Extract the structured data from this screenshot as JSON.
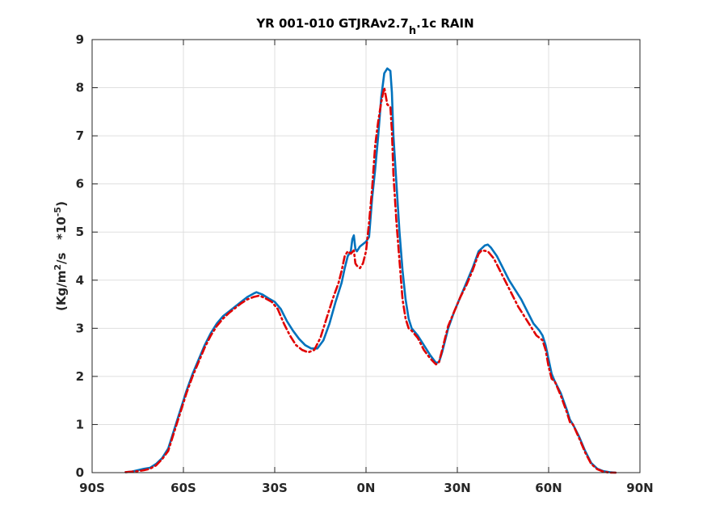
{
  "chart_data": {
    "type": "line",
    "title": {
      "main": "YR 001-010 GTJRAv2.7",
      "subscript": "h",
      "suffix": ".1c RAIN"
    },
    "ylabel": {
      "prefix": "(Kg/m",
      "sup1": "2",
      "middle": "/s   *10",
      "sup2": "-5",
      "suffix": ")"
    },
    "xlabel": "",
    "xlim": [
      -90,
      90
    ],
    "ylim": [
      0,
      9
    ],
    "x_ticks": [
      -90,
      -60,
      -30,
      0,
      30,
      60,
      90
    ],
    "x_tick_labels": [
      "90S",
      "60S",
      "30S",
      "0N",
      "30N",
      "60N",
      "90N"
    ],
    "y_ticks": [
      0,
      1,
      2,
      3,
      4,
      5,
      6,
      7,
      8,
      9
    ],
    "y_tick_labels": [
      "0",
      "1",
      "2",
      "3",
      "4",
      "5",
      "6",
      "7",
      "8",
      "9"
    ],
    "grid": true,
    "series": [
      {
        "color": "#0072BD",
        "style": "solid",
        "points": [
          [
            -79,
            0.01
          ],
          [
            -77,
            0.02
          ],
          [
            -75,
            0.05
          ],
          [
            -73,
            0.08
          ],
          [
            -71,
            0.1
          ],
          [
            -69,
            0.18
          ],
          [
            -67,
            0.3
          ],
          [
            -65,
            0.5
          ],
          [
            -63,
            0.9
          ],
          [
            -61,
            1.3
          ],
          [
            -59,
            1.7
          ],
          [
            -57,
            2.05
          ],
          [
            -55,
            2.35
          ],
          [
            -53,
            2.65
          ],
          [
            -51,
            2.9
          ],
          [
            -49,
            3.1
          ],
          [
            -47,
            3.25
          ],
          [
            -45,
            3.35
          ],
          [
            -43,
            3.45
          ],
          [
            -41,
            3.55
          ],
          [
            -39,
            3.65
          ],
          [
            -37,
            3.72
          ],
          [
            -36,
            3.75
          ],
          [
            -34,
            3.7
          ],
          [
            -32,
            3.62
          ],
          [
            -30,
            3.55
          ],
          [
            -28,
            3.4
          ],
          [
            -26,
            3.15
          ],
          [
            -24,
            2.95
          ],
          [
            -22,
            2.78
          ],
          [
            -20,
            2.65
          ],
          [
            -18,
            2.58
          ],
          [
            -16,
            2.58
          ],
          [
            -14,
            2.75
          ],
          [
            -12,
            3.1
          ],
          [
            -10,
            3.55
          ],
          [
            -8,
            3.95
          ],
          [
            -7,
            4.25
          ],
          [
            -6,
            4.5
          ],
          [
            -5,
            4.6
          ],
          [
            -4.5,
            4.85
          ],
          [
            -4,
            4.93
          ],
          [
            -3.5,
            4.65
          ],
          [
            -3,
            4.6
          ],
          [
            -2,
            4.7
          ],
          [
            -1,
            4.75
          ],
          [
            0,
            4.8
          ],
          [
            1,
            4.9
          ],
          [
            2,
            5.7
          ],
          [
            3,
            6.3
          ],
          [
            4,
            7.0
          ],
          [
            5,
            7.8
          ],
          [
            6,
            8.3
          ],
          [
            7,
            8.4
          ],
          [
            8,
            8.35
          ],
          [
            8.5,
            7.9
          ],
          [
            9,
            7.0
          ],
          [
            10,
            6.0
          ],
          [
            11,
            5.0
          ],
          [
            12,
            4.2
          ],
          [
            13,
            3.6
          ],
          [
            14,
            3.2
          ],
          [
            15,
            3.0
          ],
          [
            17,
            2.85
          ],
          [
            19,
            2.65
          ],
          [
            21,
            2.45
          ],
          [
            23,
            2.28
          ],
          [
            24,
            2.3
          ],
          [
            25,
            2.5
          ],
          [
            26,
            2.75
          ],
          [
            27,
            3.0
          ],
          [
            29,
            3.35
          ],
          [
            31,
            3.65
          ],
          [
            33,
            3.95
          ],
          [
            35,
            4.25
          ],
          [
            37,
            4.6
          ],
          [
            39,
            4.72
          ],
          [
            40,
            4.74
          ],
          [
            41,
            4.68
          ],
          [
            43,
            4.5
          ],
          [
            45,
            4.25
          ],
          [
            47,
            4.0
          ],
          [
            49,
            3.8
          ],
          [
            51,
            3.6
          ],
          [
            53,
            3.35
          ],
          [
            55,
            3.1
          ],
          [
            57,
            2.95
          ],
          [
            58,
            2.85
          ],
          [
            59,
            2.65
          ],
          [
            60,
            2.35
          ],
          [
            61,
            2.05
          ],
          [
            62,
            1.9
          ],
          [
            64,
            1.65
          ],
          [
            66,
            1.3
          ],
          [
            67,
            1.1
          ],
          [
            68,
            1.0
          ],
          [
            70,
            0.75
          ],
          [
            72,
            0.45
          ],
          [
            74,
            0.2
          ],
          [
            76,
            0.08
          ],
          [
            78,
            0.03
          ],
          [
            80,
            0.01
          ],
          [
            82,
            0.0
          ]
        ]
      },
      {
        "color": "#E00000",
        "style": "dashdot",
        "points": [
          [
            -79,
            0.01
          ],
          [
            -77,
            0.02
          ],
          [
            -75,
            0.03
          ],
          [
            -73,
            0.05
          ],
          [
            -71,
            0.08
          ],
          [
            -69,
            0.15
          ],
          [
            -67,
            0.28
          ],
          [
            -65,
            0.45
          ],
          [
            -63,
            0.85
          ],
          [
            -61,
            1.25
          ],
          [
            -59,
            1.65
          ],
          [
            -57,
            2.0
          ],
          [
            -55,
            2.3
          ],
          [
            -53,
            2.6
          ],
          [
            -51,
            2.85
          ],
          [
            -49,
            3.05
          ],
          [
            -47,
            3.2
          ],
          [
            -45,
            3.32
          ],
          [
            -43,
            3.42
          ],
          [
            -41,
            3.52
          ],
          [
            -39,
            3.6
          ],
          [
            -37,
            3.65
          ],
          [
            -35,
            3.68
          ],
          [
            -33,
            3.62
          ],
          [
            -31,
            3.55
          ],
          [
            -29,
            3.4
          ],
          [
            -27,
            3.1
          ],
          [
            -25,
            2.85
          ],
          [
            -23,
            2.65
          ],
          [
            -21,
            2.55
          ],
          [
            -19,
            2.5
          ],
          [
            -17,
            2.55
          ],
          [
            -15,
            2.8
          ],
          [
            -13,
            3.2
          ],
          [
            -11,
            3.6
          ],
          [
            -9,
            3.95
          ],
          [
            -8,
            4.2
          ],
          [
            -7,
            4.5
          ],
          [
            -6,
            4.6
          ],
          [
            -5,
            4.55
          ],
          [
            -4,
            4.62
          ],
          [
            -3.5,
            4.35
          ],
          [
            -3,
            4.3
          ],
          [
            -2,
            4.25
          ],
          [
            -1,
            4.35
          ],
          [
            0,
            4.6
          ],
          [
            1,
            5.2
          ],
          [
            2,
            5.9
          ],
          [
            3,
            6.8
          ],
          [
            4,
            7.3
          ],
          [
            5,
            7.7
          ],
          [
            6,
            8.0
          ],
          [
            7,
            7.65
          ],
          [
            8,
            7.6
          ],
          [
            8.5,
            7.1
          ],
          [
            9,
            6.2
          ],
          [
            10,
            5.2
          ],
          [
            11,
            4.4
          ],
          [
            12,
            3.6
          ],
          [
            13,
            3.2
          ],
          [
            14,
            3.0
          ],
          [
            15,
            2.95
          ],
          [
            17,
            2.8
          ],
          [
            19,
            2.55
          ],
          [
            21,
            2.38
          ],
          [
            23,
            2.25
          ],
          [
            24,
            2.3
          ],
          [
            25,
            2.55
          ],
          [
            26,
            2.8
          ],
          [
            27,
            3.05
          ],
          [
            29,
            3.35
          ],
          [
            31,
            3.65
          ],
          [
            33,
            3.9
          ],
          [
            35,
            4.2
          ],
          [
            37,
            4.55
          ],
          [
            38,
            4.62
          ],
          [
            40,
            4.6
          ],
          [
            42,
            4.45
          ],
          [
            44,
            4.2
          ],
          [
            46,
            3.95
          ],
          [
            48,
            3.7
          ],
          [
            50,
            3.45
          ],
          [
            52,
            3.25
          ],
          [
            54,
            3.05
          ],
          [
            56,
            2.85
          ],
          [
            58,
            2.75
          ],
          [
            59,
            2.55
          ],
          [
            60,
            2.2
          ],
          [
            61,
            1.95
          ],
          [
            62,
            1.9
          ],
          [
            64,
            1.6
          ],
          [
            66,
            1.25
          ],
          [
            67,
            1.05
          ],
          [
            68,
            1.0
          ],
          [
            70,
            0.72
          ],
          [
            72,
            0.42
          ],
          [
            74,
            0.18
          ],
          [
            76,
            0.07
          ],
          [
            78,
            0.02
          ],
          [
            80,
            0.0
          ],
          [
            82,
            0.0
          ]
        ]
      }
    ]
  }
}
